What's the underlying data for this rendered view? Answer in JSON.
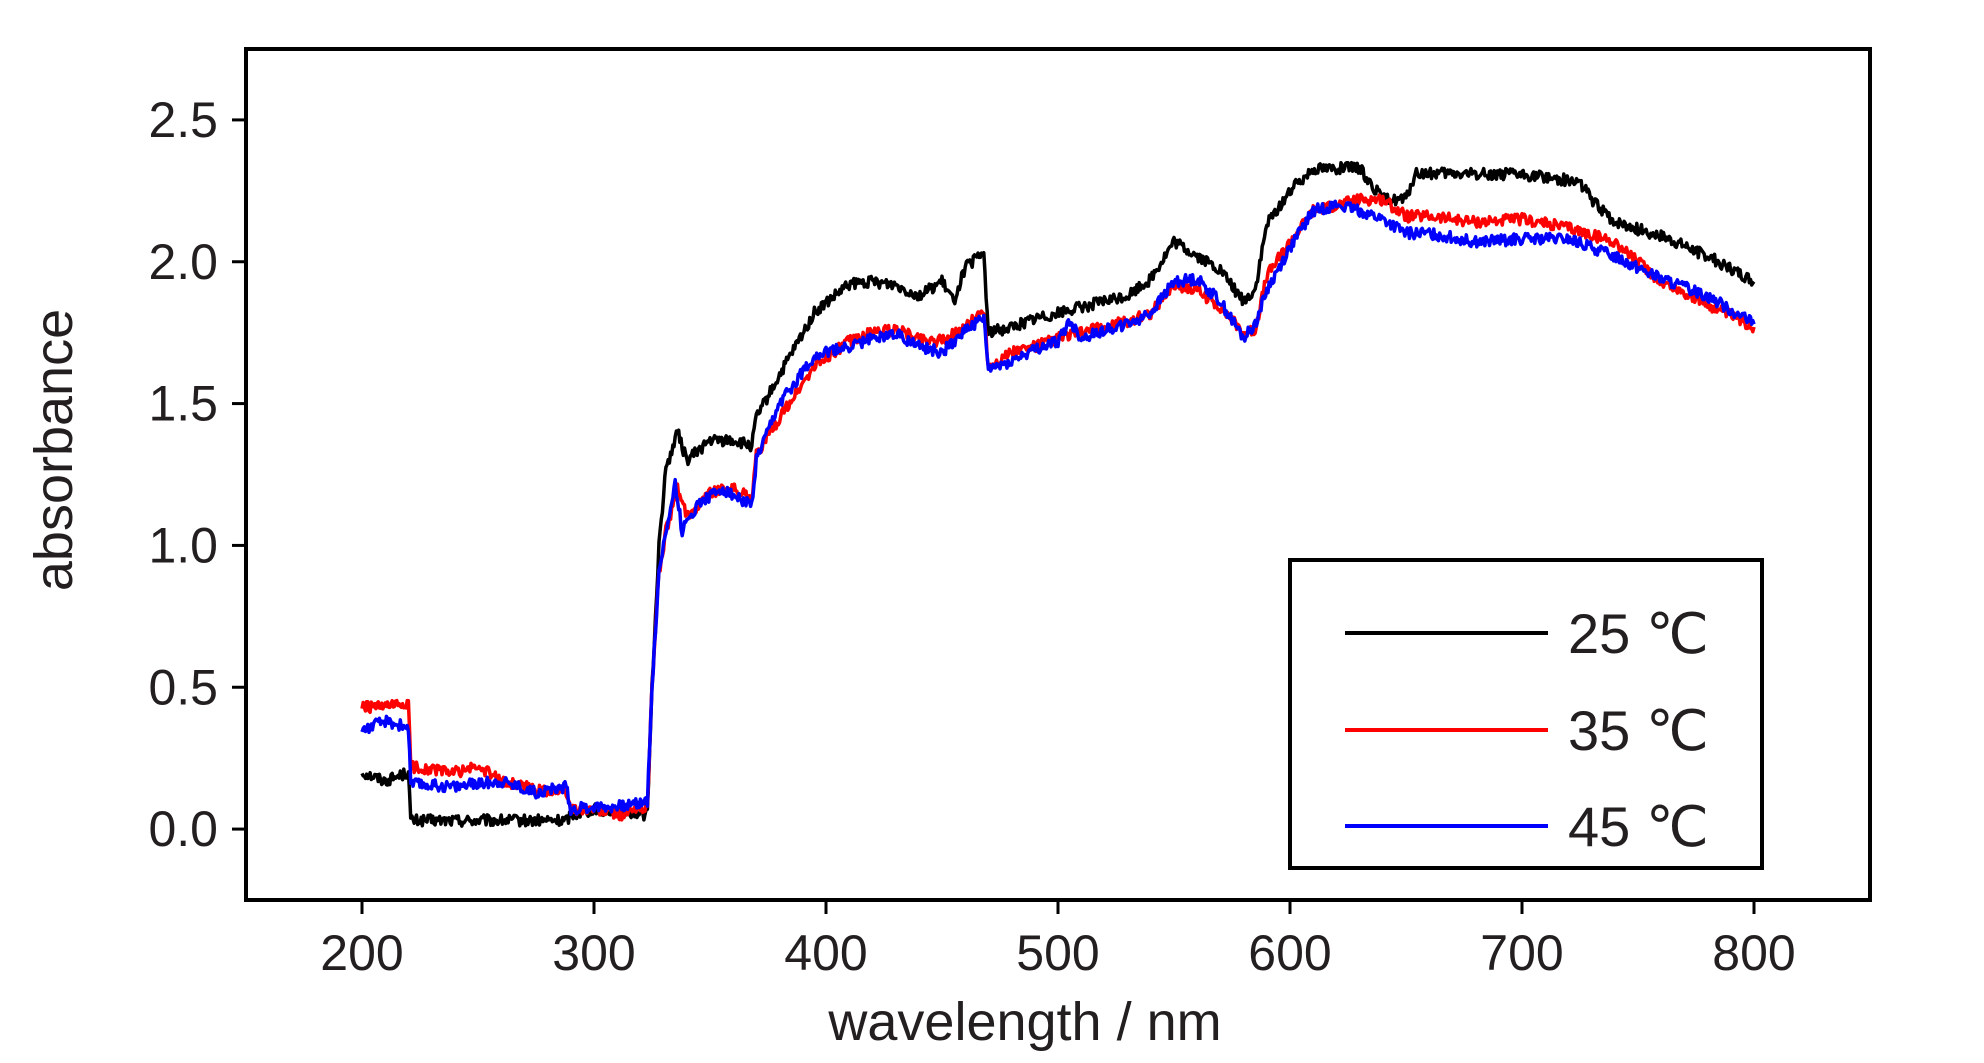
{
  "chart_data": {
    "type": "line",
    "title": "",
    "xlabel": "wavelength / nm",
    "ylabel": "absorbance",
    "xlim": [
      150,
      850
    ],
    "ylim": [
      -0.25,
      2.75
    ],
    "xticks": [
      200,
      300,
      400,
      500,
      600,
      700,
      800
    ],
    "yticks": [
      0.0,
      0.5,
      1.0,
      1.5,
      2.0,
      2.5
    ],
    "xtick_labels": [
      "200",
      "300",
      "400",
      "500",
      "600",
      "700",
      "800"
    ],
    "ytick_labels": [
      "0.0",
      "0.5",
      "1.0",
      "1.5",
      "2.0",
      "2.5"
    ],
    "grid": false,
    "legend_position": "bottom-right",
    "series": [
      {
        "name": "25 ℃",
        "color": "#000000",
        "points": [
          [
            200,
            0.2
          ],
          [
            210,
            0.17
          ],
          [
            220,
            0.2
          ],
          [
            221,
            0.03
          ],
          [
            240,
            0.03
          ],
          [
            260,
            0.03
          ],
          [
            288,
            0.03
          ],
          [
            290,
            0.05
          ],
          [
            300,
            0.07
          ],
          [
            315,
            0.06
          ],
          [
            323,
            0.05
          ],
          [
            325,
            0.5
          ],
          [
            328,
            1.0
          ],
          [
            331,
            1.27
          ],
          [
            336,
            1.4
          ],
          [
            340,
            1.3
          ],
          [
            350,
            1.37
          ],
          [
            360,
            1.37
          ],
          [
            368,
            1.35
          ],
          [
            370,
            1.45
          ],
          [
            380,
            1.6
          ],
          [
            395,
            1.82
          ],
          [
            410,
            1.92
          ],
          [
            420,
            1.93
          ],
          [
            430,
            1.92
          ],
          [
            440,
            1.88
          ],
          [
            450,
            1.93
          ],
          [
            455,
            1.86
          ],
          [
            460,
            1.98
          ],
          [
            468,
            2.03
          ],
          [
            470,
            1.75
          ],
          [
            480,
            1.77
          ],
          [
            490,
            1.8
          ],
          [
            500,
            1.82
          ],
          [
            510,
            1.84
          ],
          [
            520,
            1.86
          ],
          [
            530,
            1.88
          ],
          [
            540,
            1.94
          ],
          [
            550,
            2.07
          ],
          [
            560,
            2.02
          ],
          [
            570,
            1.97
          ],
          [
            580,
            1.86
          ],
          [
            585,
            1.9
          ],
          [
            590,
            2.13
          ],
          [
            600,
            2.25
          ],
          [
            610,
            2.33
          ],
          [
            620,
            2.33
          ],
          [
            630,
            2.33
          ],
          [
            640,
            2.22
          ],
          [
            650,
            2.22
          ],
          [
            654,
            2.31
          ],
          [
            670,
            2.31
          ],
          [
            690,
            2.31
          ],
          [
            710,
            2.3
          ],
          [
            725,
            2.28
          ],
          [
            732,
            2.2
          ],
          [
            740,
            2.14
          ],
          [
            760,
            2.09
          ],
          [
            780,
            2.02
          ],
          [
            800,
            1.93
          ]
        ]
      },
      {
        "name": "35 ℃",
        "color": "#ff0000",
        "points": [
          [
            200,
            0.43
          ],
          [
            210,
            0.43
          ],
          [
            220,
            0.44
          ],
          [
            221,
            0.22
          ],
          [
            240,
            0.2
          ],
          [
            250,
            0.22
          ],
          [
            260,
            0.17
          ],
          [
            275,
            0.14
          ],
          [
            288,
            0.13
          ],
          [
            290,
            0.07
          ],
          [
            300,
            0.07
          ],
          [
            312,
            0.05
          ],
          [
            323,
            0.08
          ],
          [
            325,
            0.5
          ],
          [
            328,
            0.9
          ],
          [
            331,
            1.05
          ],
          [
            336,
            1.2
          ],
          [
            340,
            1.1
          ],
          [
            350,
            1.19
          ],
          [
            360,
            1.2
          ],
          [
            368,
            1.17
          ],
          [
            370,
            1.32
          ],
          [
            380,
            1.45
          ],
          [
            395,
            1.63
          ],
          [
            410,
            1.72
          ],
          [
            420,
            1.75
          ],
          [
            430,
            1.76
          ],
          [
            440,
            1.73
          ],
          [
            450,
            1.72
          ],
          [
            460,
            1.77
          ],
          [
            468,
            1.83
          ],
          [
            470,
            1.63
          ],
          [
            480,
            1.68
          ],
          [
            490,
            1.7
          ],
          [
            500,
            1.73
          ],
          [
            510,
            1.75
          ],
          [
            520,
            1.77
          ],
          [
            530,
            1.79
          ],
          [
            540,
            1.82
          ],
          [
            550,
            1.92
          ],
          [
            560,
            1.9
          ],
          [
            570,
            1.84
          ],
          [
            580,
            1.75
          ],
          [
            585,
            1.76
          ],
          [
            590,
            1.95
          ],
          [
            600,
            2.07
          ],
          [
            610,
            2.18
          ],
          [
            620,
            2.2
          ],
          [
            630,
            2.22
          ],
          [
            640,
            2.22
          ],
          [
            650,
            2.16
          ],
          [
            660,
            2.16
          ],
          [
            680,
            2.14
          ],
          [
            700,
            2.15
          ],
          [
            720,
            2.12
          ],
          [
            740,
            2.07
          ],
          [
            760,
            1.93
          ],
          [
            780,
            1.85
          ],
          [
            800,
            1.77
          ]
        ]
      },
      {
        "name": "45 ℃",
        "color": "#0000ff",
        "points": [
          [
            200,
            0.35
          ],
          [
            210,
            0.38
          ],
          [
            220,
            0.36
          ],
          [
            221,
            0.16
          ],
          [
            240,
            0.15
          ],
          [
            260,
            0.17
          ],
          [
            275,
            0.13
          ],
          [
            288,
            0.15
          ],
          [
            290,
            0.07
          ],
          [
            300,
            0.08
          ],
          [
            312,
            0.08
          ],
          [
            323,
            0.1
          ],
          [
            325,
            0.5
          ],
          [
            328,
            0.9
          ],
          [
            331,
            1.05
          ],
          [
            335,
            1.22
          ],
          [
            338,
            1.05
          ],
          [
            345,
            1.15
          ],
          [
            355,
            1.2
          ],
          [
            368,
            1.14
          ],
          [
            370,
            1.3
          ],
          [
            380,
            1.5
          ],
          [
            395,
            1.67
          ],
          [
            410,
            1.7
          ],
          [
            420,
            1.73
          ],
          [
            430,
            1.75
          ],
          [
            440,
            1.7
          ],
          [
            450,
            1.68
          ],
          [
            460,
            1.76
          ],
          [
            468,
            1.8
          ],
          [
            470,
            1.62
          ],
          [
            480,
            1.65
          ],
          [
            490,
            1.69
          ],
          [
            500,
            1.72
          ],
          [
            505,
            1.79
          ],
          [
            510,
            1.73
          ],
          [
            520,
            1.76
          ],
          [
            530,
            1.78
          ],
          [
            540,
            1.82
          ],
          [
            550,
            1.93
          ],
          [
            560,
            1.94
          ],
          [
            570,
            1.86
          ],
          [
            580,
            1.73
          ],
          [
            585,
            1.78
          ],
          [
            590,
            1.9
          ],
          [
            600,
            2.05
          ],
          [
            610,
            2.18
          ],
          [
            620,
            2.2
          ],
          [
            630,
            2.18
          ],
          [
            640,
            2.15
          ],
          [
            650,
            2.1
          ],
          [
            660,
            2.1
          ],
          [
            680,
            2.07
          ],
          [
            700,
            2.08
          ],
          [
            720,
            2.08
          ],
          [
            740,
            2.02
          ],
          [
            760,
            1.94
          ],
          [
            780,
            1.88
          ],
          [
            800,
            1.78
          ]
        ]
      }
    ],
    "legend": {
      "entries": [
        "25 ℃",
        "35 ℃",
        "45 ℃"
      ]
    }
  }
}
